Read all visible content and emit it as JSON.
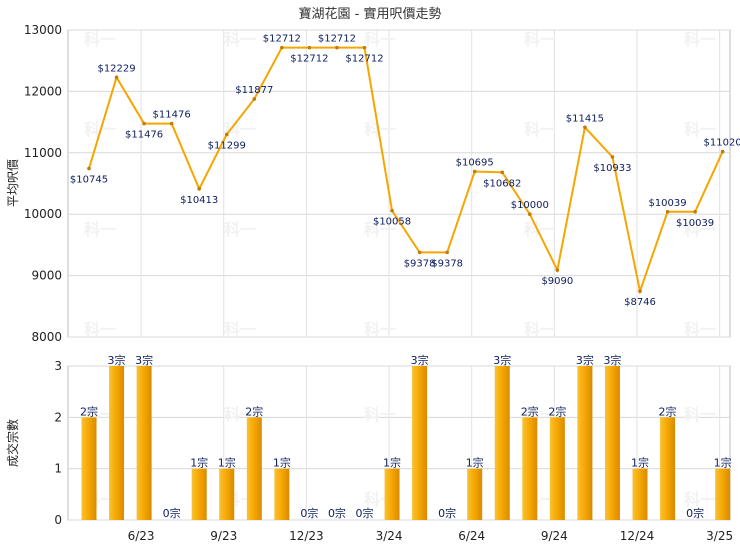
{
  "chart_data": [
    {
      "type": "line",
      "title": "寶湖花園 - 實用呎價走勢",
      "ylabel": "平均呎價",
      "ylim": [
        8000,
        13000
      ],
      "yticks": [
        "8000",
        "9000",
        "10000",
        "11000",
        "12000",
        "13000"
      ],
      "series_color": "#f5a600",
      "grid": true,
      "values": [
        10745,
        12229,
        11476,
        11476,
        10413,
        11299,
        11877,
        12712,
        12712,
        12712,
        12712,
        10058,
        9378,
        9378,
        10695,
        10682,
        10000,
        9090,
        11415,
        10933,
        8746,
        10039,
        10039,
        11020
      ],
      "labels": [
        "$10745",
        "$12229",
        "$11476",
        "$11476",
        "$10413",
        "$11299",
        "$11877",
        "$12712",
        "$12712",
        "$12712",
        "$12712",
        "$10058",
        "$9378",
        "$9378",
        "$10695",
        "$10682",
        "$10000",
        "$9090",
        "$11415",
        "$10933",
        "$8746",
        "$10039",
        "$10039",
        "$11020"
      ]
    },
    {
      "type": "bar",
      "ylabel": "成交宗數",
      "ylim": [
        0,
        3
      ],
      "yticks": [
        "0",
        "1",
        "2",
        "3"
      ],
      "bar_color": "#f5a600",
      "grid": true,
      "values": [
        2,
        3,
        3,
        0,
        1,
        1,
        2,
        1,
        0,
        0,
        0,
        1,
        3,
        0,
        1,
        3,
        2,
        2,
        3,
        3,
        1,
        2,
        0,
        1
      ],
      "labels": [
        "2宗",
        "3宗",
        "3宗",
        "0宗",
        "1宗",
        "1宗",
        "2宗",
        "1宗",
        "0宗",
        "0宗",
        "0宗",
        "1宗",
        "3宗",
        "0宗",
        "1宗",
        "3宗",
        "2宗",
        "2宗",
        "3宗",
        "3宗",
        "1宗",
        "2宗",
        "0宗",
        "1宗"
      ],
      "x_ticks": [
        "6/23",
        "9/23",
        "12/23",
        "3/24",
        "6/24",
        "9/24",
        "12/24",
        "3/25"
      ]
    }
  ],
  "watermark": "科一"
}
